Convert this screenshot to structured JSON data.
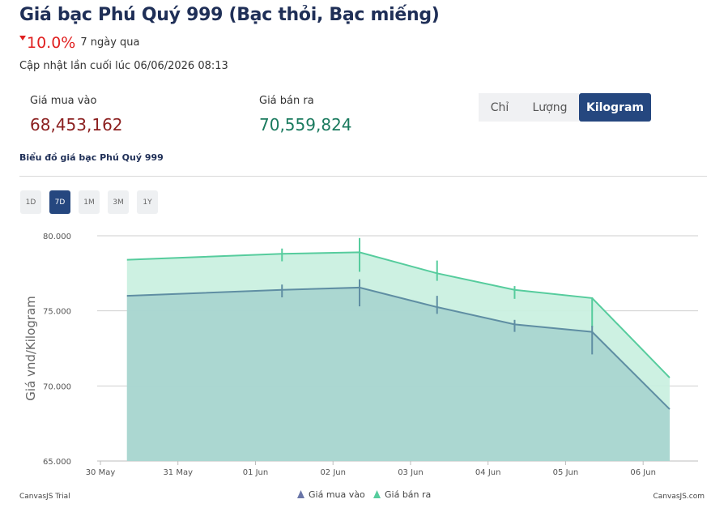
{
  "header": {
    "title": "Giá bạc Phú Quý 999 (Bạc thỏi, Bạc miếng)",
    "change_value": "10.0%",
    "change_label": "7 ngày qua",
    "updated": "Cập nhật lần cuối lúc 06/06/2026 08:13"
  },
  "prices": {
    "buy_label": "Giá mua vào",
    "buy_value": "68,453,162",
    "sell_label": "Giá bán ra",
    "sell_value": "70,559,824"
  },
  "unit_tabs": [
    "Chỉ",
    "Lượng",
    "Kilogram"
  ],
  "unit_active": "Kilogram",
  "chart_caption": "Biểu đồ giá bạc Phú Quý 999",
  "range_tabs": [
    "1D",
    "7D",
    "1M",
    "3M",
    "1Y"
  ],
  "range_active": "7D",
  "colors": {
    "buy_fill": "#a9d5d0",
    "buy_line": "#5f8ea3",
    "sell_fill": "#c8efdf",
    "sell_line": "#56cc9d",
    "accent": "#25477f"
  },
  "chart_data": {
    "type": "area",
    "ylabel": "Giá vnd/Kilogram",
    "y_ticks": [
      "80.000",
      "75.000",
      "70.000",
      "65.000"
    ],
    "y_tick_values": [
      80000,
      75000,
      70000,
      65000
    ],
    "ylim": [
      65000,
      80000
    ],
    "x_ticks": [
      "30 May",
      "31 May",
      "01 Jun",
      "02 Jun",
      "03 Jun",
      "04 Jun",
      "05 Jun",
      "06 Jun"
    ],
    "xlim": [
      "2026-05-29T23:00",
      "2026-06-06T17:00"
    ],
    "x": [
      "2026-05-30T08:13",
      "2026-06-01T08:13",
      "2026-06-02T08:13",
      "2026-06-03T08:13",
      "2026-06-04T08:13",
      "2026-06-05T08:13",
      "2026-06-06T08:13"
    ],
    "series": [
      {
        "name": "Giá mua vào",
        "values": [
          76000,
          76400,
          76550,
          75250,
          74100,
          73600,
          68450
        ],
        "ranges": [
          [
            null,
            null
          ],
          [
            75900,
            76750
          ],
          [
            75300,
            77100
          ],
          [
            74800,
            76000
          ],
          [
            73600,
            74400
          ],
          [
            72100,
            74000
          ],
          [
            null,
            null
          ]
        ]
      },
      {
        "name": "Giá bán ra",
        "values": [
          78400,
          78800,
          78900,
          77500,
          76400,
          75850,
          70550
        ],
        "ranges": [
          [
            null,
            null
          ],
          [
            78300,
            79150
          ],
          [
            77600,
            79850
          ],
          [
            77000,
            78350
          ],
          [
            75800,
            76650
          ],
          [
            73900,
            75900
          ],
          [
            null,
            null
          ]
        ]
      }
    ],
    "legend_position": "bottom",
    "grid": true
  },
  "footer": {
    "left": "CanvasJS Trial",
    "right": "CanvasJS.com"
  }
}
